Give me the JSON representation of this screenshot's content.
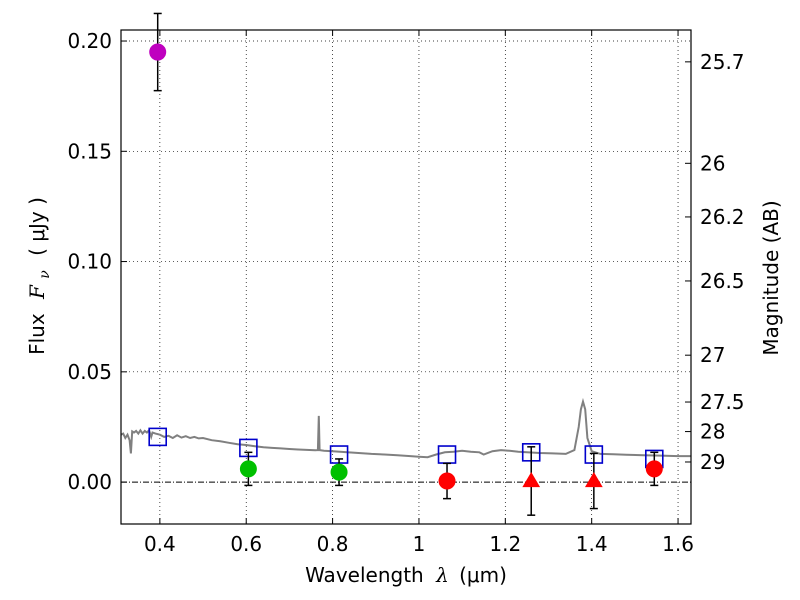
{
  "chart_data": {
    "type": "scatter",
    "xlabel_text": "Wavelength",
    "xlabel_symbol": "λ",
    "xlabel_unit": "(μm)",
    "ylabel_text": "Flux",
    "ylabel_symbol": "F",
    "ylabel_subscript": "ν",
    "ylabel_unit": "( μJy )",
    "y2label": "Magnitude (AB)",
    "xlim": [
      0.31,
      1.63
    ],
    "ylim": [
      -0.019,
      0.205
    ],
    "grid": true,
    "xticks": [
      {
        "value": 0.4,
        "label": "0.4"
      },
      {
        "value": 0.6,
        "label": "0.6"
      },
      {
        "value": 0.8,
        "label": "0.8"
      },
      {
        "value": 1.0,
        "label": "1"
      },
      {
        "value": 1.2,
        "label": "1.2"
      },
      {
        "value": 1.4,
        "label": "1.4"
      },
      {
        "value": 1.6,
        "label": "1.6"
      }
    ],
    "yticks": [
      {
        "value": 0.0,
        "label": "0.00"
      },
      {
        "value": 0.05,
        "label": "0.05"
      },
      {
        "value": 0.1,
        "label": "0.10"
      },
      {
        "value": 0.15,
        "label": "0.15"
      },
      {
        "value": 0.2,
        "label": "0.20"
      }
    ],
    "y2ticks": [
      {
        "mag": 25.7,
        "label": "25.7"
      },
      {
        "mag": 26.0,
        "label": "26"
      },
      {
        "mag": 26.2,
        "label": "26.2"
      },
      {
        "mag": 26.5,
        "label": "26.5"
      },
      {
        "mag": 27.0,
        "label": "27"
      },
      {
        "mag": 27.5,
        "label": "27.5"
      },
      {
        "mag": 28.0,
        "label": "28"
      },
      {
        "mag": 29.0,
        "label": "29"
      }
    ],
    "zero_point_uJy": 3631000000,
    "observed_points": [
      {
        "x": 0.395,
        "y": 0.195,
        "err": 0.0175,
        "color": "#bf00bf",
        "marker": "circle"
      },
      {
        "x": 0.605,
        "y": 0.006,
        "err": 0.0075,
        "color": "#00c000",
        "marker": "circle"
      },
      {
        "x": 0.815,
        "y": 0.0045,
        "err": 0.006,
        "color": "#00c000",
        "marker": "circle"
      },
      {
        "x": 1.065,
        "y": 0.0005,
        "err": 0.008,
        "color": "#ff0000",
        "marker": "circle"
      },
      {
        "x": 1.26,
        "y": 0.0005,
        "err": 0.0155,
        "color": "#ff0000",
        "marker": "triangle"
      },
      {
        "x": 1.405,
        "y": 0.0005,
        "err": 0.0125,
        "color": "#ff0000",
        "marker": "triangle"
      },
      {
        "x": 1.545,
        "y": 0.006,
        "err": 0.0075,
        "color": "#ff0000",
        "marker": "circle"
      }
    ],
    "model_points": [
      {
        "x": 0.395,
        "y": 0.0205
      },
      {
        "x": 0.605,
        "y": 0.0155
      },
      {
        "x": 0.815,
        "y": 0.0125
      },
      {
        "x": 1.065,
        "y": 0.0125
      },
      {
        "x": 1.26,
        "y": 0.0135
      },
      {
        "x": 1.405,
        "y": 0.0125
      },
      {
        "x": 1.545,
        "y": 0.0105
      }
    ],
    "model_marker_color": "#0000cc",
    "sed_color": "#808080",
    "sed_curve": [
      [
        0.31,
        0.0215
      ],
      [
        0.315,
        0.022
      ],
      [
        0.32,
        0.02
      ],
      [
        0.325,
        0.0215
      ],
      [
        0.33,
        0.019
      ],
      [
        0.333,
        0.013
      ],
      [
        0.336,
        0.023
      ],
      [
        0.34,
        0.0225
      ],
      [
        0.345,
        0.0232
      ],
      [
        0.35,
        0.022
      ],
      [
        0.355,
        0.0235
      ],
      [
        0.36,
        0.022
      ],
      [
        0.365,
        0.0232
      ],
      [
        0.37,
        0.0225
      ],
      [
        0.375,
        0.0235
      ],
      [
        0.38,
        0.0205
      ],
      [
        0.383,
        0.0225
      ],
      [
        0.39,
        0.022
      ],
      [
        0.4,
        0.0215
      ],
      [
        0.41,
        0.0205
      ],
      [
        0.42,
        0.021
      ],
      [
        0.43,
        0.02
      ],
      [
        0.44,
        0.0212
      ],
      [
        0.45,
        0.0202
      ],
      [
        0.46,
        0.0208
      ],
      [
        0.47,
        0.02
      ],
      [
        0.48,
        0.0205
      ],
      [
        0.49,
        0.0198
      ],
      [
        0.5,
        0.02
      ],
      [
        0.52,
        0.019
      ],
      [
        0.54,
        0.0185
      ],
      [
        0.56,
        0.0178
      ],
      [
        0.58,
        0.0172
      ],
      [
        0.6,
        0.0168
      ],
      [
        0.62,
        0.0163
      ],
      [
        0.64,
        0.0158
      ],
      [
        0.66,
        0.0155
      ],
      [
        0.68,
        0.0153
      ],
      [
        0.7,
        0.015
      ],
      [
        0.72,
        0.0148
      ],
      [
        0.74,
        0.0146
      ],
      [
        0.76,
        0.0144
      ],
      [
        0.766,
        0.0145
      ],
      [
        0.768,
        0.03
      ],
      [
        0.77,
        0.0145
      ],
      [
        0.78,
        0.0142
      ],
      [
        0.8,
        0.014
      ],
      [
        0.83,
        0.0136
      ],
      [
        0.86,
        0.0132
      ],
      [
        0.89,
        0.0128
      ],
      [
        0.92,
        0.0125
      ],
      [
        0.95,
        0.0122
      ],
      [
        0.98,
        0.0118
      ],
      [
        1.0,
        0.0115
      ],
      [
        1.02,
        0.0113
      ],
      [
        1.04,
        0.0125
      ],
      [
        1.06,
        0.0135
      ],
      [
        1.08,
        0.0138
      ],
      [
        1.1,
        0.0142
      ],
      [
        1.12,
        0.0138
      ],
      [
        1.14,
        0.0135
      ],
      [
        1.15,
        0.0125
      ],
      [
        1.17,
        0.014
      ],
      [
        1.19,
        0.0145
      ],
      [
        1.21,
        0.0142
      ],
      [
        1.23,
        0.0138
      ],
      [
        1.25,
        0.0135
      ],
      [
        1.28,
        0.0132
      ],
      [
        1.31,
        0.013
      ],
      [
        1.34,
        0.0128
      ],
      [
        1.36,
        0.0145
      ],
      [
        1.37,
        0.025
      ],
      [
        1.375,
        0.033
      ],
      [
        1.38,
        0.0365
      ],
      [
        1.385,
        0.033
      ],
      [
        1.39,
        0.02
      ],
      [
        1.4,
        0.014
      ],
      [
        1.42,
        0.0128
      ],
      [
        1.45,
        0.0126
      ],
      [
        1.48,
        0.0124
      ],
      [
        1.52,
        0.0122
      ],
      [
        1.56,
        0.012
      ],
      [
        1.6,
        0.0118
      ],
      [
        1.63,
        0.0118
      ]
    ]
  }
}
